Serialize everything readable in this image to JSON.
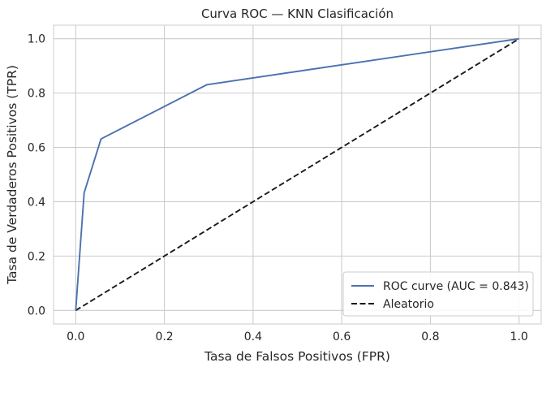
{
  "chart_data": {
    "type": "line",
    "title": "Curva ROC — KNN Clasificación",
    "xlabel": "Tasa de Falsos Positivos (FPR)",
    "ylabel": "Tasa de Verdaderos Positivos (TPR)",
    "xlim": [
      -0.05,
      1.05
    ],
    "ylim": [
      -0.05,
      1.05
    ],
    "xticks": [
      0.0,
      0.2,
      0.4,
      0.6,
      0.8,
      1.0
    ],
    "xtick_labels": [
      "0.0",
      "0.2",
      "0.4",
      "0.6",
      "0.8",
      "1.0"
    ],
    "yticks": [
      0.0,
      0.2,
      0.4,
      0.6,
      0.8,
      1.0
    ],
    "ytick_labels": [
      "0.0",
      "0.2",
      "0.4",
      "0.6",
      "0.8",
      "1.0"
    ],
    "grid": true,
    "legend_position": "lower-right",
    "series": [
      {
        "name": "ROC curve (AUC = 0.843)",
        "color": "#4c72b0",
        "style": "solid",
        "x": [
          0.0,
          0.019,
          0.057,
          0.296,
          1.0
        ],
        "y": [
          0.0,
          0.433,
          0.631,
          0.831,
          1.0
        ]
      },
      {
        "name": "Aleatorio",
        "color": "#1a1a1a",
        "style": "dashed",
        "x": [
          0.0,
          1.0
        ],
        "y": [
          0.0,
          1.0
        ]
      }
    ]
  }
}
